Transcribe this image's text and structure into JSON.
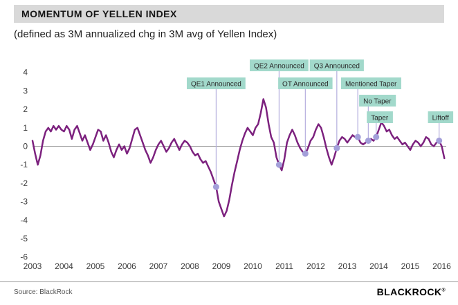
{
  "header": {
    "title": "MOMENTUM OF YELLEN INDEX"
  },
  "subtitle": "(defined as 3M annualized chg in 3M avg of Yellen Index)",
  "footer": {
    "source": "Source: BlackRock",
    "brand": "BLACKROCK",
    "trademark": "®"
  },
  "colors": {
    "line": "#7c217e",
    "dot": "#a39fd9",
    "connector": "#b5aede",
    "annotation_bg": "#a2d9cb",
    "annotation_text": "#2a2a2a",
    "zero_line": "#999999",
    "axis_text": "#3a3a3a",
    "title_bar_bg": "#d9d9d9"
  },
  "chart_data": {
    "type": "line",
    "title": "MOMENTUM OF YELLEN INDEX",
    "subtitle": "(defined as 3M annualized chg in 3M avg of Yellen Index)",
    "x_start_year": 2003,
    "x_step_months": 1,
    "xlim": [
      2003,
      2016.2
    ],
    "ylim": [
      -6,
      4
    ],
    "x_ticks": [
      2003,
      2004,
      2005,
      2006,
      2007,
      2008,
      2009,
      2010,
      2011,
      2012,
      2013,
      2014,
      2015,
      2016
    ],
    "y_ticks": [
      4,
      3,
      2,
      1,
      0,
      -1,
      -2,
      -3,
      -4,
      -5,
      -6
    ],
    "grid": false,
    "zero_line": true,
    "values": [
      0.3,
      -0.4,
      -1.0,
      -0.5,
      0.3,
      0.8,
      1.0,
      0.8,
      1.1,
      0.9,
      1.1,
      0.9,
      0.8,
      1.1,
      0.9,
      0.4,
      0.9,
      1.1,
      0.7,
      0.3,
      0.6,
      0.2,
      -0.2,
      0.1,
      0.5,
      0.9,
      0.8,
      0.3,
      0.6,
      0.2,
      -0.3,
      -0.6,
      -0.2,
      0.1,
      -0.2,
      0.0,
      -0.4,
      -0.1,
      0.4,
      0.9,
      1.0,
      0.6,
      0.2,
      -0.2,
      -0.5,
      -0.9,
      -0.6,
      -0.2,
      0.1,
      0.3,
      0.0,
      -0.3,
      -0.1,
      0.2,
      0.4,
      0.1,
      -0.2,
      0.1,
      0.3,
      0.2,
      0.0,
      -0.3,
      -0.5,
      -0.4,
      -0.7,
      -0.9,
      -0.8,
      -1.1,
      -1.4,
      -1.8,
      -2.2,
      -3.0,
      -3.4,
      -3.8,
      -3.5,
      -2.9,
      -2.1,
      -1.4,
      -0.8,
      -0.2,
      0.3,
      0.7,
      1.0,
      0.8,
      0.6,
      1.0,
      1.2,
      1.8,
      2.55,
      2.1,
      1.2,
      0.5,
      0.2,
      -0.6,
      -1.0,
      -1.3,
      -0.7,
      0.2,
      0.6,
      0.9,
      0.6,
      0.2,
      -0.1,
      -0.3,
      -0.4,
      -0.1,
      0.3,
      0.5,
      0.9,
      1.2,
      1.0,
      0.5,
      -0.1,
      -0.6,
      -1.0,
      -0.6,
      -0.1,
      0.3,
      0.5,
      0.4,
      0.2,
      0.4,
      0.6,
      0.5,
      0.5,
      0.2,
      0.1,
      0.2,
      0.3,
      0.4,
      0.3,
      0.5,
      0.9,
      1.3,
      1.1,
      0.8,
      0.9,
      0.6,
      0.4,
      0.5,
      0.3,
      0.1,
      0.2,
      0.0,
      -0.2,
      0.1,
      0.3,
      0.2,
      0.0,
      0.2,
      0.5,
      0.4,
      0.1,
      0.0,
      0.2,
      0.3,
      0.0,
      -0.65
    ],
    "annotations": [
      {
        "label": "QE1 Announced",
        "x": 2008.8333,
        "y": -2.2,
        "row": 2,
        "label_dx": 0
      },
      {
        "label": "QE2 Announced",
        "x": 2010.8333,
        "y": -1.0,
        "row": 1,
        "label_dx": 0
      },
      {
        "label": "OT Announced",
        "x": 2011.6667,
        "y": -0.4,
        "row": 2,
        "label_dx": 0
      },
      {
        "label": "Q3 Announced",
        "x": 2012.6667,
        "y": -0.1,
        "row": 1,
        "label_dx": 0
      },
      {
        "label": "Mentioned Taper",
        "x": 2013.3333,
        "y": 0.5,
        "row": 2,
        "label_dx": 19
      },
      {
        "label": "No Taper",
        "x": 2013.6667,
        "y": 0.3,
        "row": 3,
        "label_dx": 13
      },
      {
        "label": "Taper",
        "x": 2013.9167,
        "y": 0.5,
        "row": 4,
        "label_dx": 5
      },
      {
        "label": "Liftoff",
        "x": 2015.9167,
        "y": 0.3,
        "row": 4,
        "label_dx": 2
      }
    ]
  }
}
